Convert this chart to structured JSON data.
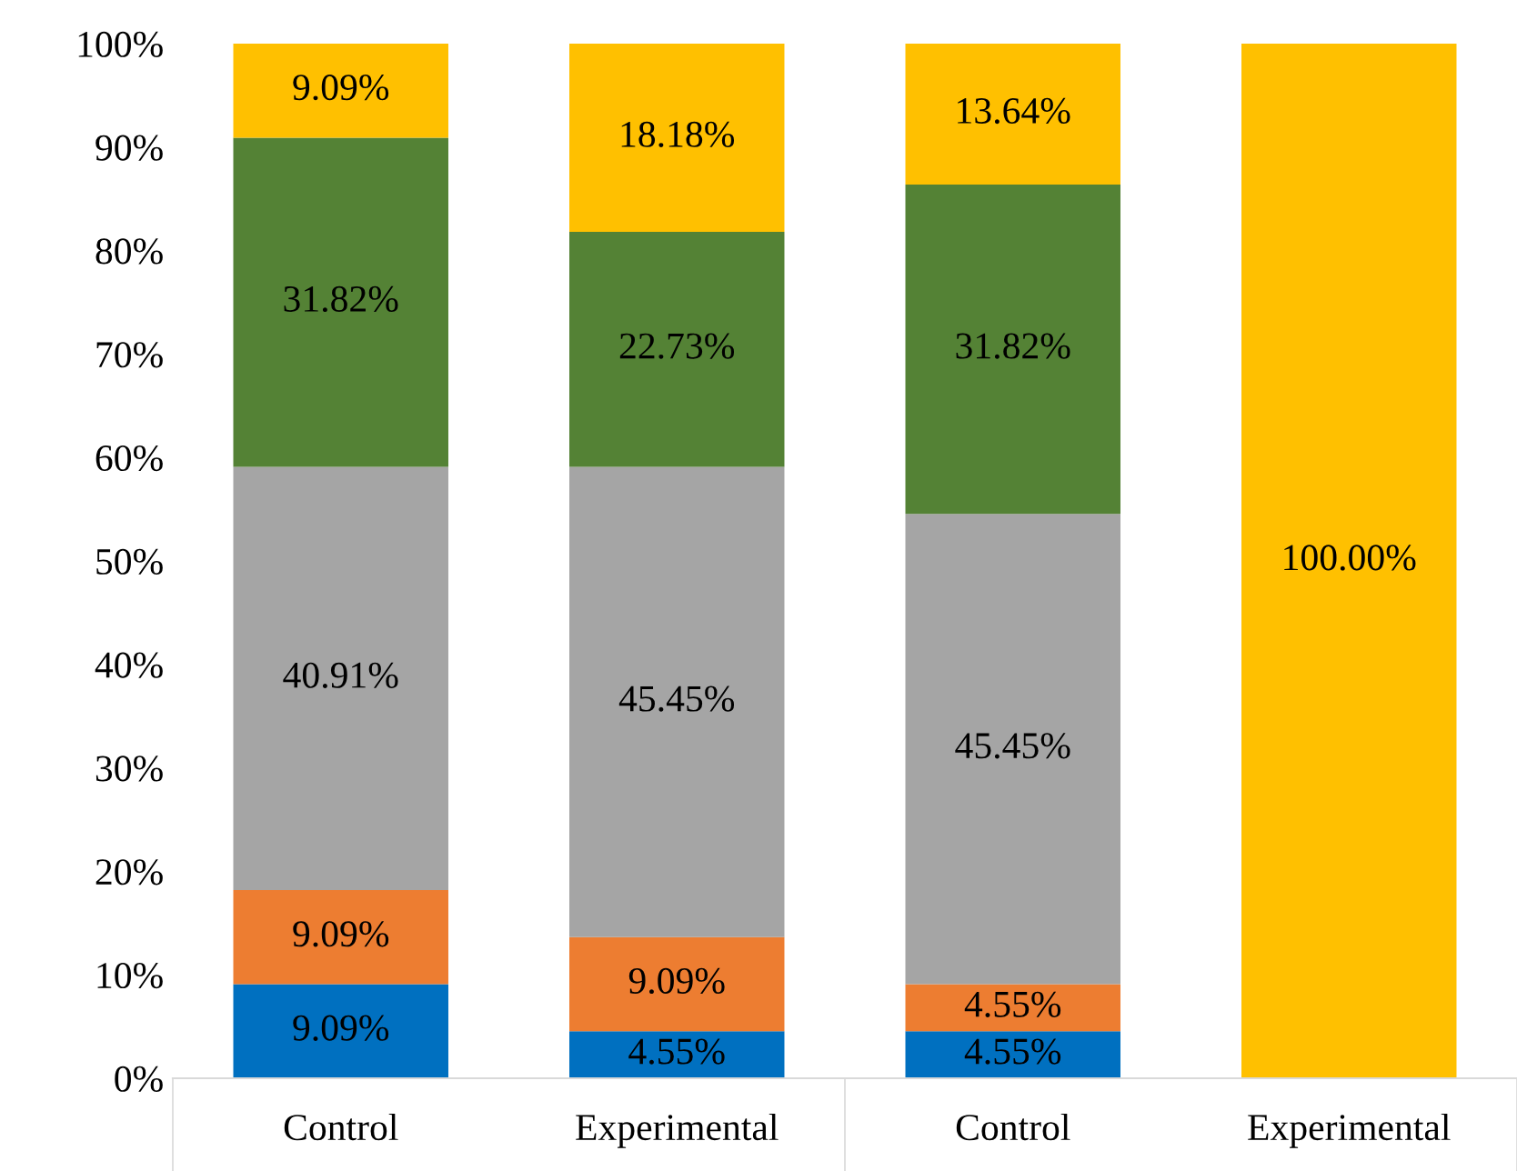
{
  "chart_data": {
    "type": "bar",
    "stacked": true,
    "categories": [
      "Control",
      "Experimental",
      "Control",
      "Experimental"
    ],
    "series": [
      {
        "color": "#0070c0",
        "values": [
          9.09,
          4.55,
          4.55,
          null
        ],
        "value_labels": [
          "9.09%",
          "4.55%",
          "4.55%",
          null
        ]
      },
      {
        "color": "#ed7d31",
        "values": [
          9.09,
          9.09,
          4.55,
          null
        ],
        "value_labels": [
          "9.09%",
          "9.09%",
          "4.55%",
          null
        ]
      },
      {
        "color": "#a5a5a5",
        "values": [
          40.91,
          45.45,
          45.45,
          null
        ],
        "value_labels": [
          "40.91%",
          "45.45%",
          "45.45%",
          null
        ]
      },
      {
        "color": "#548235",
        "values": [
          31.82,
          22.73,
          31.82,
          null
        ],
        "value_labels": [
          "31.82%",
          "22.73%",
          "31.82%",
          null
        ]
      },
      {
        "color": "#ffc000",
        "values": [
          9.09,
          18.18,
          13.64,
          100
        ],
        "value_labels": [
          "9.09%",
          "18.18%",
          "13.64%",
          "100.00%"
        ]
      }
    ],
    "ylim": [
      0,
      100
    ],
    "yticks": [
      {
        "value": 0,
        "label": "0%"
      },
      {
        "value": 10,
        "label": "10%"
      },
      {
        "value": 20,
        "label": "20%"
      },
      {
        "value": 30,
        "label": "30%"
      },
      {
        "value": 40,
        "label": "40%"
      },
      {
        "value": 50,
        "label": "50%"
      },
      {
        "value": 60,
        "label": "60%"
      },
      {
        "value": 70,
        "label": "70%"
      },
      {
        "value": 80,
        "label": "80%"
      },
      {
        "value": 90,
        "label": "90%"
      },
      {
        "value": 100,
        "label": "100%"
      }
    ],
    "grid": false,
    "legend": false
  }
}
